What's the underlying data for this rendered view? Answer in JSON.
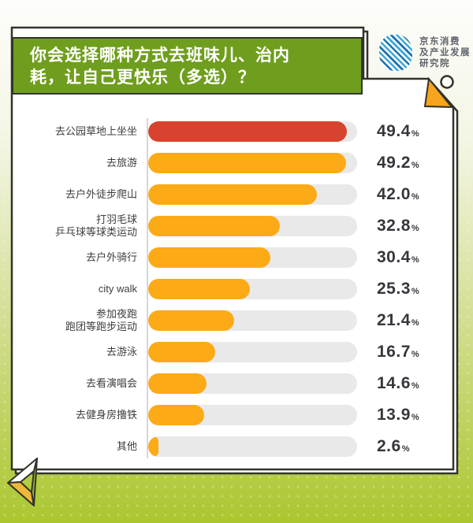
{
  "page": {
    "background_top": "#fdfdfa",
    "background_bottom": "#aac72f"
  },
  "header": {
    "title_line1": "你会选择哪种方式去班味儿、治内",
    "title_line2": "耗，让自己更快乐（多选）？",
    "title_bg": "#6f9e1e"
  },
  "logo": {
    "name_line1": "京东消费",
    "name_line2": "及产业发展",
    "name_line3": "研究院"
  },
  "colors": {
    "highlight_bar": "#d7432e",
    "bar": "#fcaa16",
    "track": "#e9e9e9",
    "accent_green": "#6f9e1e",
    "fold_corner": "#f7a41f",
    "outline": "#32332b"
  },
  "chart_data": {
    "type": "bar",
    "orientation": "horizontal",
    "title": "你会选择哪种方式去班味儿、治内耗，让自己更快乐（多选）？",
    "source": "京东消费及产业发展研究院",
    "value_suffix": "%",
    "xlim": [
      0,
      52
    ],
    "grid": false,
    "legend": "none",
    "highlight_index": 0,
    "categories": [
      "去公园草地上坐坐",
      "去旅游",
      "去户外徒步爬山",
      "打羽毛球乒乓球等球类运动",
      "去户外骑行",
      "city walk",
      "参加夜跑跑团等跑步运动",
      "去游泳",
      "去看演唱会",
      "去健身房撸铁",
      "其他"
    ],
    "category_lines": [
      [
        "去公园草地上坐坐"
      ],
      [
        "去旅游"
      ],
      [
        "去户外徒步爬山"
      ],
      [
        "打羽毛球",
        "乒乓球等球类运动"
      ],
      [
        "去户外骑行"
      ],
      [
        "city walk"
      ],
      [
        "参加夜跑",
        "跑团等跑步运动"
      ],
      [
        "去游泳"
      ],
      [
        "去看演唱会"
      ],
      [
        "去健身房撸铁"
      ],
      [
        "其他"
      ]
    ],
    "values": [
      49.4,
      49.2,
      42.0,
      32.8,
      30.4,
      25.3,
      21.4,
      16.7,
      14.6,
      13.9,
      2.6
    ],
    "value_labels": [
      "49.4",
      "49.2",
      "42.0",
      "32.8",
      "30.4",
      "25.3",
      "21.4",
      "16.7",
      "14.6",
      "13.9",
      "2.6"
    ]
  }
}
